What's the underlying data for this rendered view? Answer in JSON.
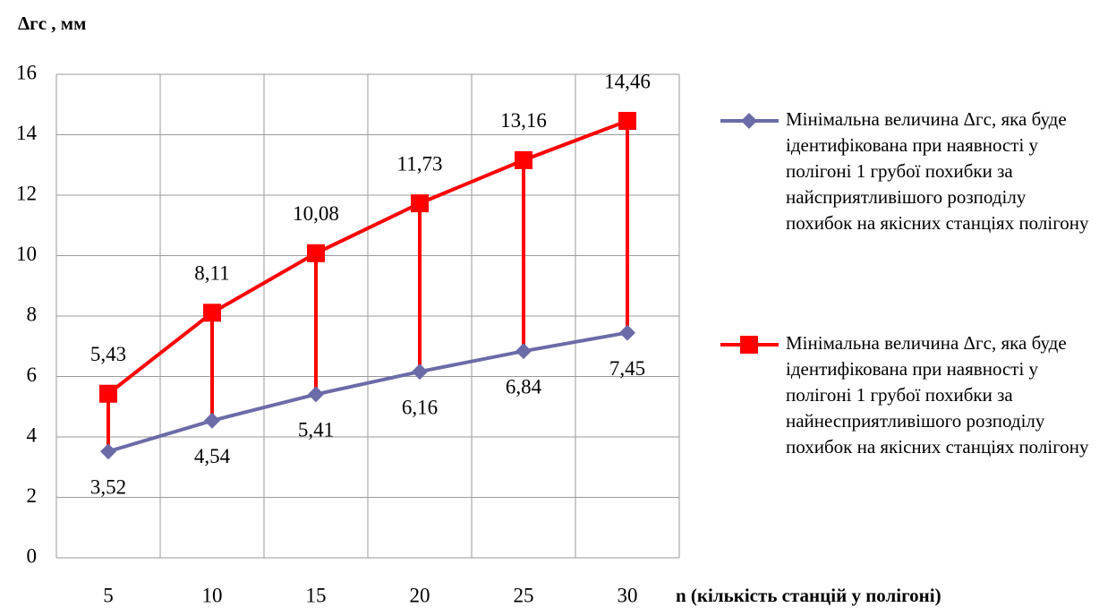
{
  "chart_data": {
    "type": "line",
    "y_label": "Δгс , мм",
    "x_label": "n (кількість станцій у полігоні)",
    "categories": [
      "5",
      "10",
      "15",
      "20",
      "25",
      "30"
    ],
    "series": [
      {
        "name": "Мінімальна величина Δгс, яка буде ідентифікована при наявності у полігоні 1 грубої похибки за найсприятливішого розподілу похибок на якісних станціях полігону",
        "color": "#6b6ba8",
        "marker": "diamond",
        "values": [
          3.52,
          4.54,
          5.41,
          6.16,
          6.84,
          7.45
        ],
        "value_labels": [
          "3,52",
          "4,54",
          "5,41",
          "6,16",
          "6,84",
          "7,45"
        ]
      },
      {
        "name": "Мінімальна величина Δгс, яка буде ідентифікована при наявності у полігоні 1 грубої похибки за найнесприятливішого розподілу похибок на якісних станціях полігону",
        "color": "#ff0000",
        "marker": "square",
        "values": [
          5.43,
          8.11,
          10.08,
          11.73,
          13.16,
          14.46
        ],
        "value_labels": [
          "5,43",
          "8,11",
          "10,08",
          "11,73",
          "13,16",
          "14,46"
        ]
      }
    ],
    "ylim": [
      0,
      16
    ],
    "yticks": [
      0,
      2,
      4,
      6,
      8,
      10,
      12,
      14,
      16
    ],
    "grid": true,
    "legend": "right"
  }
}
